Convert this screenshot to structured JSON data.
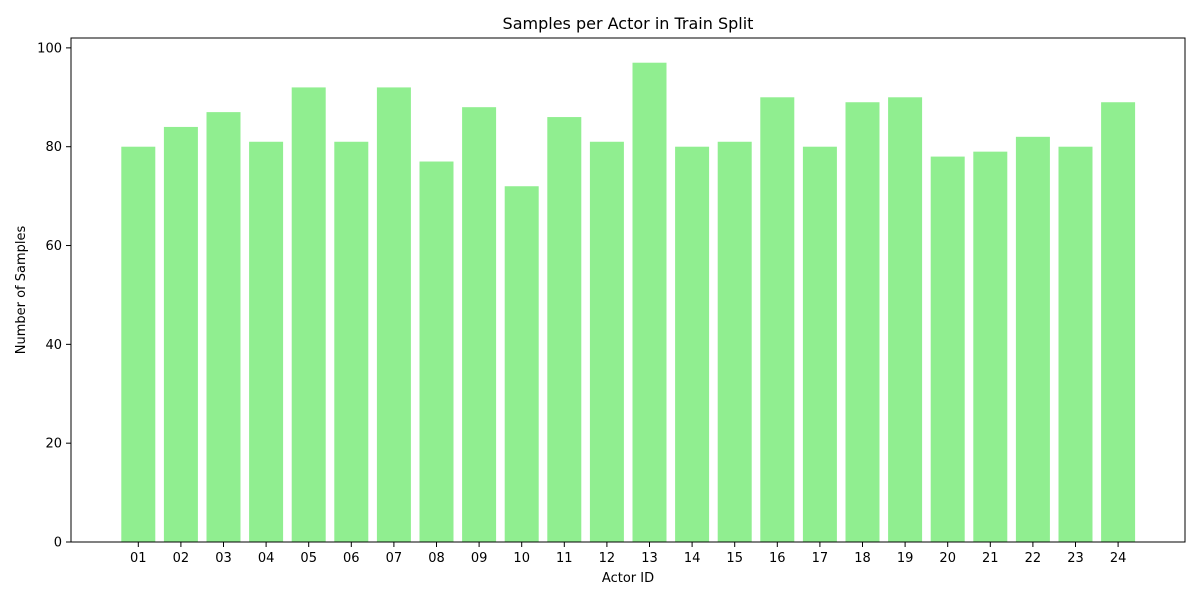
{
  "chart_data": {
    "type": "bar",
    "title": "Samples per Actor in Train Split",
    "xlabel": "Actor ID",
    "ylabel": "Number of Samples",
    "categories": [
      "01",
      "02",
      "03",
      "04",
      "05",
      "06",
      "07",
      "08",
      "09",
      "10",
      "11",
      "12",
      "13",
      "14",
      "15",
      "16",
      "17",
      "18",
      "19",
      "20",
      "21",
      "22",
      "23",
      "24"
    ],
    "values": [
      80,
      84,
      87,
      81,
      92,
      81,
      92,
      77,
      88,
      72,
      86,
      81,
      97,
      80,
      81,
      90,
      80,
      89,
      90,
      78,
      79,
      82,
      80,
      89
    ],
    "ylim": [
      0,
      102
    ],
    "yticks": [
      0,
      20,
      40,
      60,
      80,
      100
    ],
    "bar_color": "#90ee90",
    "grid": false,
    "legend": "none"
  }
}
